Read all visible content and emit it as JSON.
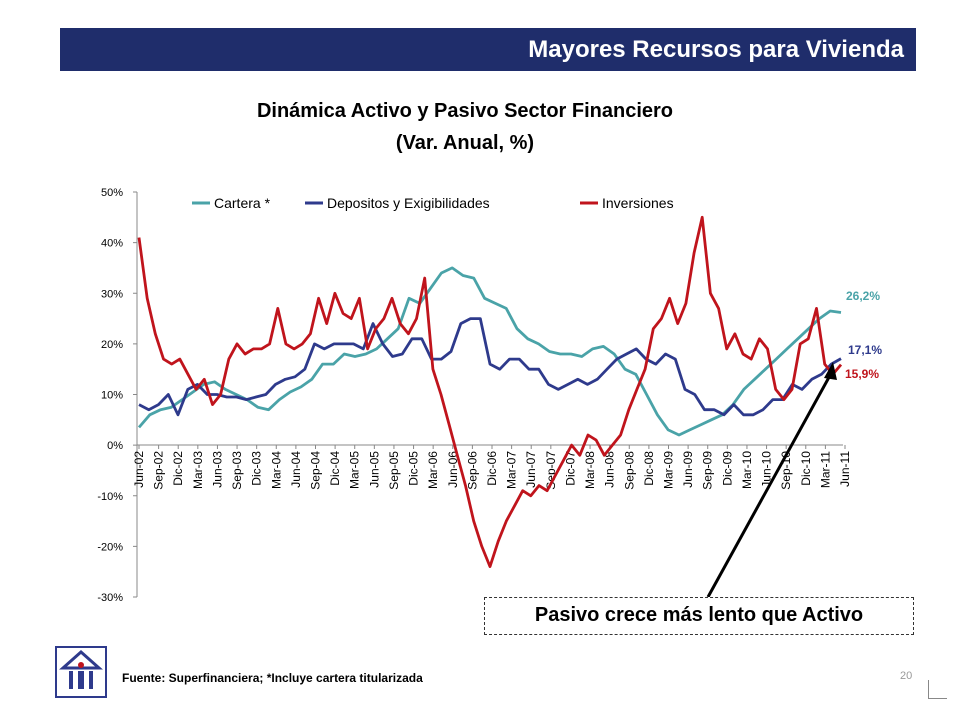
{
  "header": {
    "title": "Mayores Recursos para Vivienda"
  },
  "chart_data": {
    "type": "line",
    "title": "Dinámica Activo y Pasivo Sector Financiero",
    "subtitle": "(Var. Anual, %)",
    "ylim": [
      -30,
      50
    ],
    "y_ticks": [
      "50%",
      "40%",
      "30%",
      "20%",
      "10%",
      "0%",
      "-10%",
      "-20%",
      "-30%"
    ],
    "y_tick_values": [
      50,
      40,
      30,
      20,
      10,
      0,
      -10,
      -20,
      -30
    ],
    "x_ticks": [
      "Jun-02",
      "Sep-02",
      "Dic-02",
      "Mar-03",
      "Jun-03",
      "Sep-03",
      "Dic-03",
      "Mar-04",
      "Jun-04",
      "Sep-04",
      "Dic-04",
      "Mar-05",
      "Jun-05",
      "Sep-05",
      "Dic-05",
      "Mar-06",
      "Jun-06",
      "Sep-06",
      "Dic-06",
      "Mar-07",
      "Jun-07",
      "Sep-07",
      "Dic-07",
      "Mar-08",
      "Jun-08",
      "Sep-08",
      "Dic-08",
      "Mar-09",
      "Jun-09",
      "Sep-09",
      "Dic-09",
      "Mar-10",
      "Jun-10",
      "Sep-10",
      "Dic-10",
      "Mar-11",
      "Jun-11"
    ],
    "legend_position": "top",
    "grid": false,
    "series": [
      {
        "name": "Cartera *",
        "color": "#4aa3a8",
        "end_label": "26,2%",
        "values": [
          3.5,
          6,
          7,
          7.5,
          9,
          10.5,
          12,
          12.5,
          11,
          10,
          9,
          7.5,
          7,
          9,
          10.5,
          11.5,
          13,
          16,
          16,
          18,
          17.5,
          18,
          19,
          21,
          23,
          29,
          28,
          31,
          34,
          35,
          33.5,
          33,
          29,
          28,
          27,
          23,
          21,
          20,
          18.5,
          18,
          18,
          17.5,
          19,
          19.5,
          18,
          15,
          14,
          10,
          6,
          3,
          2,
          3,
          4,
          5,
          6,
          8,
          11,
          13,
          15,
          17,
          19,
          21,
          23,
          25,
          26.5,
          26.2
        ]
      },
      {
        "name": "Depositos y Exigibilidades",
        "color": "#2e3a8c",
        "end_label": "17,1%",
        "values": [
          8,
          7,
          8,
          10,
          6,
          11,
          12,
          10,
          10,
          9.5,
          9.5,
          9,
          9.5,
          10,
          12,
          13,
          13.5,
          15,
          20,
          19,
          20,
          20,
          20,
          19,
          24,
          20,
          17.5,
          18,
          21,
          21,
          17,
          17,
          18.5,
          24,
          25,
          25,
          16,
          15,
          17,
          17,
          15,
          15,
          12,
          11,
          12,
          13,
          12,
          13,
          15,
          17,
          18,
          19,
          17,
          16,
          18,
          17,
          11,
          10,
          7,
          7,
          6,
          8,
          6,
          6,
          7,
          9,
          9,
          12,
          11,
          13,
          14,
          16,
          17.1
        ]
      },
      {
        "name": "Inversiones",
        "color": "#c0141c",
        "end_label": "15,9%",
        "values": [
          41,
          29,
          22,
          17,
          16,
          17,
          14,
          11,
          13,
          8,
          10,
          17,
          20,
          18,
          19,
          19,
          20,
          27,
          20,
          19,
          20,
          22,
          29,
          24,
          30,
          26,
          25,
          29,
          19,
          23,
          25,
          29,
          24,
          22,
          25,
          33,
          15,
          10,
          4,
          -2,
          -8,
          -15,
          -20,
          -24,
          -19,
          -15,
          -12,
          -9,
          -10,
          -8,
          -9,
          -6,
          -3,
          0,
          -2,
          2,
          1,
          -2,
          0,
          2,
          7,
          11,
          15,
          23,
          25,
          29,
          24,
          28,
          38,
          45,
          30,
          27,
          19,
          22,
          18,
          17,
          21,
          19,
          11,
          9,
          11,
          20,
          21,
          27,
          16,
          14,
          15.9
        ]
      }
    ]
  },
  "callout": {
    "text": "Pasivo crece más lento que Activo"
  },
  "footer": {
    "source": "Fuente: Superfinanciera; *Incluye cartera titularizada",
    "page": "20"
  }
}
